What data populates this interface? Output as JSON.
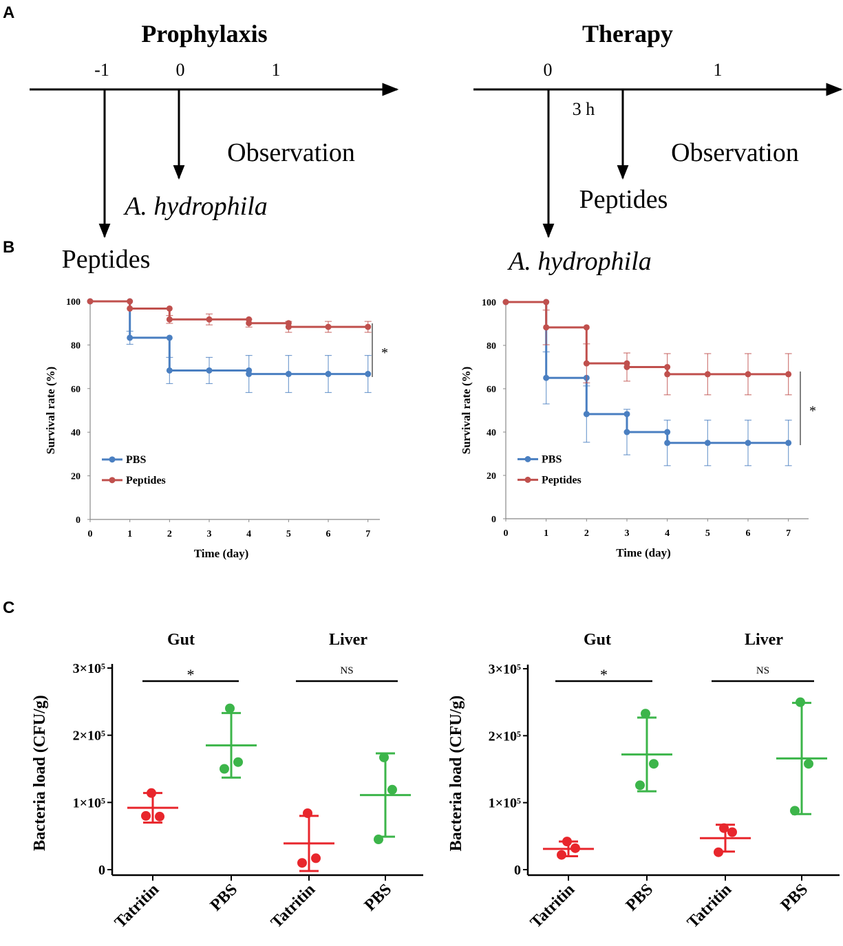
{
  "panel_labels": {
    "a": "A",
    "b": "B",
    "c": "C"
  },
  "timeline": {
    "prophylaxis": {
      "title": "Prophylaxis",
      "ticks": [
        "-1",
        "0",
        "1"
      ],
      "observation": "Observation",
      "pathogen": "A. hydrophila",
      "treatment": "Peptides"
    },
    "therapy": {
      "title": "Therapy",
      "ticks": [
        "0",
        "1"
      ],
      "delay": "3 h",
      "observation": "Observation",
      "pathogen": "A. hydrophila",
      "treatment": "Peptides"
    }
  },
  "colors": {
    "pbs": "#4a7fc1",
    "peptides": "#c0504d",
    "tatritin": "#e8262c",
    "pbs_green": "#3cb54a",
    "axis": "#000000"
  },
  "chart_data": [
    {
      "id": "survival_prophylaxis",
      "type": "line",
      "title": "",
      "xlabel": "Time (day)",
      "ylabel": "Survival rate (%)",
      "xlim": [
        0,
        7.3
      ],
      "ylim": [
        0,
        100
      ],
      "xticks": [
        "0",
        "1",
        "2",
        "3",
        "4",
        "5",
        "6",
        "7"
      ],
      "yticks": [
        "0",
        "20",
        "40",
        "60",
        "80",
        "100"
      ],
      "legend": "bottom-left",
      "significance": "*",
      "series": [
        {
          "name": "PBS",
          "color": "#4a7fc1",
          "points": [
            [
              0,
              100
            ],
            [
              1,
              100
            ],
            [
              1,
              83.3
            ],
            [
              2,
              83.3
            ],
            [
              2,
              68.3
            ],
            [
              3,
              68.3
            ],
            [
              4,
              68.3
            ],
            [
              4,
              66.7
            ],
            [
              5,
              66.7
            ],
            [
              6,
              66.7
            ],
            [
              7,
              66.7
            ]
          ],
          "errors": [
            [
              1,
              83.3,
              3
            ],
            [
              2,
              68.3,
              6
            ],
            [
              3,
              68.3,
              6
            ],
            [
              4,
              66.7,
              8.5
            ],
            [
              5,
              66.7,
              8.5
            ],
            [
              6,
              66.7,
              8.5
            ],
            [
              7,
              66.7,
              8.5
            ]
          ]
        },
        {
          "name": "Peptides",
          "color": "#c0504d",
          "points": [
            [
              0,
              100
            ],
            [
              1,
              100
            ],
            [
              1,
              96.7
            ],
            [
              2,
              96.7
            ],
            [
              2,
              91.7
            ],
            [
              3,
              91.7
            ],
            [
              4,
              91.7
            ],
            [
              4,
              90
            ],
            [
              5,
              90
            ],
            [
              5,
              88.3
            ],
            [
              6,
              88.3
            ],
            [
              7,
              88.3
            ]
          ],
          "errors": [
            [
              2,
              91.7,
              1.8
            ],
            [
              3,
              91.7,
              2.5
            ],
            [
              4,
              90,
              1.8
            ],
            [
              5,
              88.3,
              2.5
            ],
            [
              6,
              88.3,
              2.5
            ],
            [
              7,
              88.3,
              2.5
            ]
          ]
        }
      ]
    },
    {
      "id": "survival_therapy",
      "type": "line",
      "title": "",
      "xlabel": "Time (day)",
      "ylabel": "Survival rate (%)",
      "xlim": [
        0,
        7.5
      ],
      "ylim": [
        0,
        100
      ],
      "xticks": [
        "0",
        "1",
        "2",
        "3",
        "4",
        "5",
        "6",
        "7"
      ],
      "yticks": [
        "0",
        "20",
        "40",
        "60",
        "80",
        "100"
      ],
      "legend": "bottom-left",
      "significance": "*",
      "series": [
        {
          "name": "PBS",
          "color": "#4a7fc1",
          "points": [
            [
              0,
              100
            ],
            [
              1,
              100
            ],
            [
              1,
              65
            ],
            [
              2,
              65
            ],
            [
              2,
              48.3
            ],
            [
              3,
              48.3
            ],
            [
              3,
              40
            ],
            [
              4,
              40
            ],
            [
              4,
              35
            ],
            [
              5,
              35
            ],
            [
              6,
              35
            ],
            [
              7,
              35
            ]
          ],
          "errors": [
            [
              1,
              65,
              12
            ],
            [
              2,
              48.3,
              13
            ],
            [
              3,
              40,
              10.5
            ],
            [
              4,
              35,
              10.5
            ],
            [
              5,
              35,
              10.5
            ],
            [
              6,
              35,
              10.5
            ],
            [
              7,
              35,
              10.5
            ]
          ]
        },
        {
          "name": "Peptides",
          "color": "#c0504d",
          "points": [
            [
              0,
              100
            ],
            [
              1,
              100
            ],
            [
              1,
              88.3
            ],
            [
              2,
              88.3
            ],
            [
              2,
              71.7
            ],
            [
              3,
              71.7
            ],
            [
              3,
              70
            ],
            [
              4,
              70
            ],
            [
              4,
              66.7
            ],
            [
              5,
              66.7
            ],
            [
              6,
              66.7
            ],
            [
              7,
              66.7
            ]
          ],
          "errors": [
            [
              1,
              88.3,
              8
            ],
            [
              2,
              71.7,
              9
            ],
            [
              3,
              70,
              6.5
            ],
            [
              4,
              66.7,
              9.5
            ],
            [
              5,
              66.7,
              9.5
            ],
            [
              6,
              66.7,
              9.5
            ],
            [
              7,
              66.7,
              9.5
            ]
          ]
        }
      ]
    },
    {
      "id": "bacteria_prophylaxis",
      "type": "scatter",
      "title": "",
      "xlabel": "",
      "ylabel": "Bacteria load (CFU/g)",
      "ylim": [
        0,
        300000
      ],
      "yticks": [
        "0",
        "1×10⁵",
        "2×10⁵",
        "3×10⁵"
      ],
      "xticks": [
        "Tatritin",
        "PBS",
        "Tatritin",
        "PBS"
      ],
      "groups": [
        {
          "organ": "Gut",
          "significance": "*"
        },
        {
          "organ": "Liver",
          "significance": "NS"
        }
      ],
      "series": [
        {
          "name": "Tatritin",
          "organ": "Gut",
          "color": "#e8262c",
          "points": [
            114000,
            79000,
            80000
          ],
          "mean": 92000,
          "sd": 22000
        },
        {
          "name": "PBS",
          "organ": "Gut",
          "color": "#3cb54a",
          "points": [
            240000,
            160000,
            150000
          ],
          "mean": 185000,
          "sd": 48000
        },
        {
          "name": "Tatritin",
          "organ": "Liver",
          "color": "#e8262c",
          "points": [
            84000,
            17000,
            10000
          ],
          "mean": 39000,
          "sd": 41000
        },
        {
          "name": "PBS",
          "organ": "Liver",
          "color": "#3cb54a",
          "points": [
            167000,
            119000,
            45000
          ],
          "mean": 111000,
          "sd": 62000
        }
      ]
    },
    {
      "id": "bacteria_therapy",
      "type": "scatter",
      "title": "",
      "xlabel": "",
      "ylabel": "Bacteria load (CFU/g)",
      "ylim": [
        0,
        300000
      ],
      "yticks": [
        "0",
        "1×10⁵",
        "2×10⁵",
        "3×10⁵"
      ],
      "xticks": [
        "Tatritin",
        "PBS",
        "Tatritin",
        "PBS"
      ],
      "groups": [
        {
          "organ": "Gut",
          "significance": "*"
        },
        {
          "organ": "Liver",
          "significance": "NS"
        }
      ],
      "series": [
        {
          "name": "Tatritin",
          "organ": "Gut",
          "color": "#e8262c",
          "points": [
            42000,
            32000,
            22000
          ],
          "mean": 31000,
          "sd": 11000
        },
        {
          "name": "PBS",
          "organ": "Gut",
          "color": "#3cb54a",
          "points": [
            233000,
            158000,
            126000
          ],
          "mean": 172000,
          "sd": 55000
        },
        {
          "name": "Tatritin",
          "organ": "Liver",
          "color": "#e8262c",
          "points": [
            62000,
            56000,
            26000
          ],
          "mean": 47000,
          "sd": 20000
        },
        {
          "name": "PBS",
          "organ": "Liver",
          "color": "#3cb54a",
          "points": [
            250000,
            158000,
            88000
          ],
          "mean": 166000,
          "sd": 83000
        }
      ]
    }
  ]
}
